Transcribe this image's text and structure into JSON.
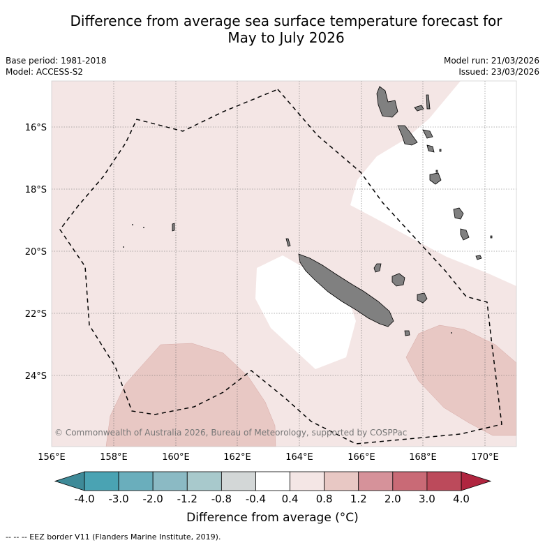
{
  "title": {
    "line1": "Difference from average sea surface temperature forecast for",
    "line2": "May to July 2026"
  },
  "meta": {
    "base_period": "Base period: 1981-2018",
    "model": "Model: ACCESS-S2",
    "model_run": "Model run: 21/03/2026",
    "issued": "Issued: 23/03/2026"
  },
  "map": {
    "lat_labels": [
      "16°S",
      "18°S",
      "20°S",
      "22°S",
      "24°S"
    ],
    "lon_labels": [
      "156°E",
      "158°E",
      "160°E",
      "162°E",
      "164°E",
      "166°E",
      "168°E",
      "170°E"
    ],
    "copyright": "© Commonwealth of Australia 2026, Bureau of Meteorology, supported by COSPPac",
    "colors": {
      "ocean_light": "#f4e6e5",
      "ocean_mid": "#e8c8c4",
      "ocean_neutral": "#ffffff",
      "land": "#808080"
    }
  },
  "colorbar": {
    "ticks": [
      "-4.0",
      "-3.0",
      "-2.0",
      "-1.2",
      "-0.8",
      "-0.4",
      "0.4",
      "0.8",
      "1.2",
      "2.0",
      "3.0",
      "4.0"
    ],
    "colors": [
      "#4aa3b3",
      "#6aaebc",
      "#8bbac4",
      "#a8c9cc",
      "#d3d7d7",
      "#ffffff",
      "#f4e6e5",
      "#e8c8c4",
      "#d6929a",
      "#c96a76",
      "#bc4a5b"
    ],
    "under_color": "#3e8a98",
    "over_color": "#b0253f",
    "title": "Difference from average (°C)"
  },
  "footer": "--  --  -- EEZ border V11 (Flanders Marine Institute, 2019)."
}
